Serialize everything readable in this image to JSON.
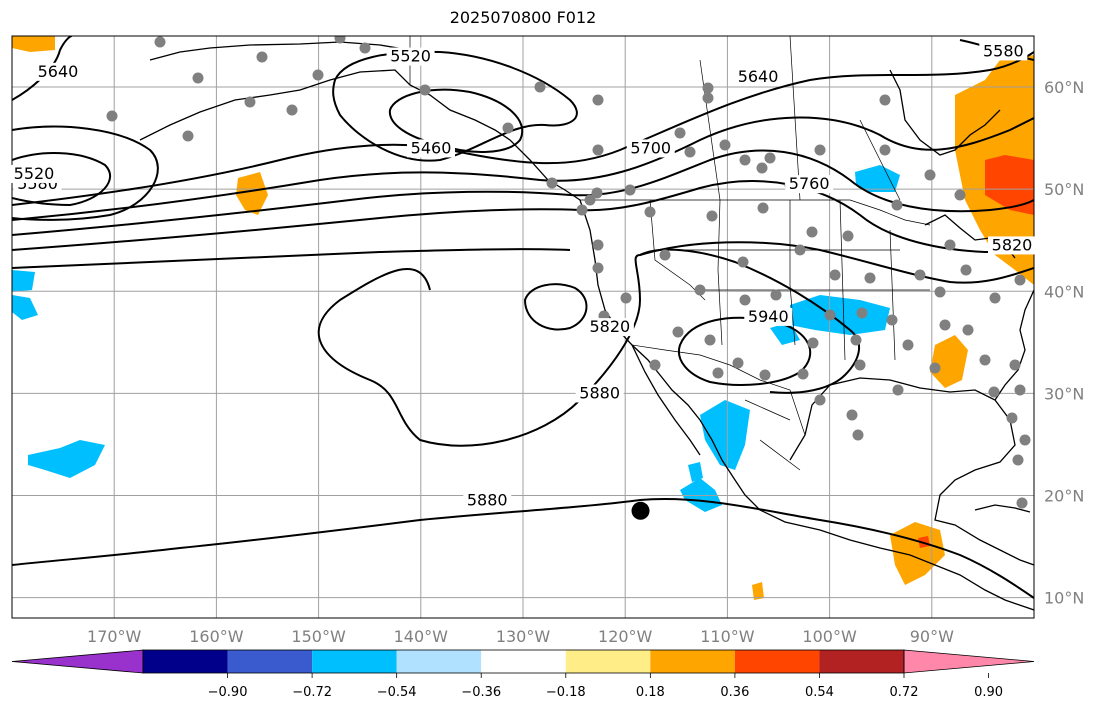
{
  "title": "2025070800 F012",
  "map": {
    "extent": {
      "lon": [
        -180,
        -80
      ],
      "lat": [
        8,
        65
      ]
    },
    "lon_ticks": [
      {
        "lon": -170,
        "label": "170°W"
      },
      {
        "lon": -160,
        "label": "160°W"
      },
      {
        "lon": -150,
        "label": "150°W"
      },
      {
        "lon": -140,
        "label": "140°W"
      },
      {
        "lon": -130,
        "label": "130°W"
      },
      {
        "lon": -120,
        "label": "120°W"
      },
      {
        "lon": -110,
        "label": "110°W"
      },
      {
        "lon": -100,
        "label": "100°W"
      },
      {
        "lon": -90,
        "label": "90°W"
      }
    ],
    "lat_ticks": [
      {
        "lat": 60,
        "label": "60°N"
      },
      {
        "lat": 50,
        "label": "50°N"
      },
      {
        "lat": 40,
        "label": "40°N"
      },
      {
        "lat": 30,
        "label": "30°N"
      },
      {
        "lat": 20,
        "label": "20°N"
      },
      {
        "lat": 10,
        "label": "10°N"
      }
    ],
    "contour_labels": [
      {
        "text": "5520",
        "lon": -141,
        "lat": 62.5
      },
      {
        "text": "5640",
        "lon": -175.5,
        "lat": 61
      },
      {
        "text": "5460",
        "lon": -139,
        "lat": 53.5
      },
      {
        "text": "5580",
        "lon": -177.5,
        "lat": 50
      },
      {
        "text": "5520",
        "lon": -180,
        "lat": 51
      },
      {
        "text": "5640",
        "lon": -107,
        "lat": 60.5
      },
      {
        "text": "5700",
        "lon": -117.5,
        "lat": 53.5
      },
      {
        "text": "5760",
        "lon": -102,
        "lat": 50
      },
      {
        "text": "5820",
        "lon": -81.5,
        "lat": 44
      },
      {
        "text": "5820",
        "lon": -121.5,
        "lat": 36
      },
      {
        "text": "5880",
        "lon": -122.5,
        "lat": 29.5
      },
      {
        "text": "5880",
        "lon": -133.5,
        "lat": 19
      },
      {
        "text": "5940",
        "lon": -106,
        "lat": 37
      },
      {
        "text": "5580",
        "lon": -83,
        "lat": 63
      }
    ],
    "station_marker": {
      "lon": -118.5,
      "lat": 18.5
    }
  },
  "colorbar": {
    "colors": [
      "#9932cc",
      "#00008b",
      "#3a5bcd",
      "#00bfff",
      "#b0e2ff",
      "#ffffff",
      "#ffee88",
      "#ffa500",
      "#ff4500",
      "#b22222",
      "#ff88aa"
    ],
    "ticks": [
      "−0.90",
      "−0.72",
      "−0.54",
      "−0.36",
      "−0.18",
      "0.18",
      "0.36",
      "0.54",
      "0.72",
      "0.90"
    ]
  }
}
